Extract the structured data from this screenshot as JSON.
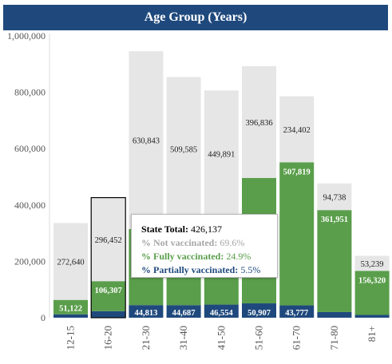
{
  "chart_data": {
    "type": "bar",
    "title": "Age Group (Years)",
    "stacked": true,
    "categories": [
      "12-15",
      "16-20",
      "21-30",
      "31-40",
      "41-50",
      "51-60",
      "61-70",
      "71-80",
      "81+"
    ],
    "series": [
      {
        "name": "% Partially vaccinated",
        "color": "#1f497d",
        "values": [
          12000,
          23378,
          44813,
          44687,
          46554,
          50907,
          43777,
          20000,
          10000
        ],
        "labels": [
          "",
          "",
          "44,813",
          "44,687",
          "46,554",
          "50,907",
          "43,777",
          "",
          ""
        ]
      },
      {
        "name": "% Fully vaccinated",
        "color": "#5a9e4b",
        "values": [
          51122,
          106307,
          270000,
          300000,
          310000,
          445000,
          507819,
          361951,
          156320
        ],
        "labels": [
          "51,122",
          "106,307",
          "",
          "",
          "",
          "",
          "507,819",
          "361,951",
          "156,320"
        ]
      },
      {
        "name": "% Not vaccinated",
        "color": "#e6e6e6",
        "values": [
          272640,
          296452,
          630843,
          509585,
          449891,
          396836,
          234402,
          94738,
          53239
        ],
        "labels": [
          "272,640",
          "296,452",
          "630,843",
          "509,585",
          "449,891",
          "396,836",
          "234,402",
          "94,738",
          "53,239"
        ]
      }
    ],
    "ylim": [
      0,
      1000000
    ],
    "yticks": [
      "0",
      "200,000",
      "400,000",
      "600,000",
      "800,000",
      "1,000,000"
    ],
    "ytick_values": [
      0,
      200000,
      400000,
      600000,
      800000,
      1000000
    ],
    "grid": false,
    "highlighted_category": "16-20"
  },
  "tooltip": {
    "total_label": "State Total:",
    "total_value": "426,137",
    "not_label": "% Not vaccinated:",
    "not_value": "69.6%",
    "fully_label": "% Fully vaccinated:",
    "fully_value": "24.9%",
    "partial_label": "% Partially vaccinated:",
    "partial_value": "5.5%",
    "colors": {
      "not": "#a6a6a6",
      "fully": "#5a9e4b",
      "partial": "#1f497d"
    }
  }
}
